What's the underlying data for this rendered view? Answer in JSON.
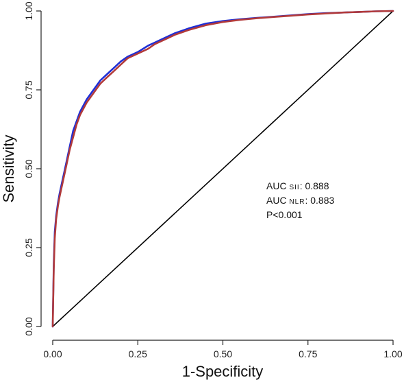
{
  "chart_data": {
    "type": "line",
    "title": "",
    "xlabel": "1-Specificity",
    "ylabel": "Sensitivity",
    "xlim": [
      0,
      1
    ],
    "ylim": [
      0,
      1
    ],
    "x_ticks": [
      "0.00",
      "0.25",
      "0.50",
      "0.75",
      "1.00"
    ],
    "y_ticks": [
      "0.00",
      "0.25",
      "0.50",
      "0.75",
      "1.00"
    ],
    "grid": false,
    "series": [
      {
        "name": "SII",
        "color": "#1f2fd6",
        "x": [
          0,
          0.003,
          0.006,
          0.01,
          0.015,
          0.02,
          0.03,
          0.04,
          0.05,
          0.06,
          0.07,
          0.08,
          0.09,
          0.1,
          0.12,
          0.14,
          0.16,
          0.18,
          0.2,
          0.22,
          0.25,
          0.28,
          0.3,
          0.33,
          0.36,
          0.4,
          0.45,
          0.5,
          0.55,
          0.6,
          0.65,
          0.7,
          0.75,
          0.8,
          0.85,
          0.9,
          0.95,
          1
        ],
        "y": [
          0,
          0.2,
          0.3,
          0.35,
          0.39,
          0.42,
          0.47,
          0.52,
          0.57,
          0.62,
          0.65,
          0.68,
          0.7,
          0.72,
          0.75,
          0.78,
          0.8,
          0.82,
          0.84,
          0.855,
          0.87,
          0.89,
          0.9,
          0.915,
          0.93,
          0.945,
          0.96,
          0.968,
          0.974,
          0.978,
          0.982,
          0.986,
          0.99,
          0.993,
          0.995,
          0.997,
          0.999,
          1
        ]
      },
      {
        "name": "NLR",
        "color": "#b23a3a",
        "x": [
          0,
          0.003,
          0.006,
          0.01,
          0.015,
          0.02,
          0.03,
          0.04,
          0.05,
          0.06,
          0.07,
          0.08,
          0.09,
          0.1,
          0.12,
          0.14,
          0.16,
          0.18,
          0.2,
          0.22,
          0.25,
          0.28,
          0.3,
          0.33,
          0.36,
          0.4,
          0.45,
          0.5,
          0.55,
          0.6,
          0.65,
          0.7,
          0.75,
          0.8,
          0.85,
          0.9,
          0.95,
          1
        ],
        "y": [
          0,
          0.18,
          0.28,
          0.34,
          0.38,
          0.41,
          0.46,
          0.51,
          0.56,
          0.6,
          0.64,
          0.67,
          0.69,
          0.71,
          0.74,
          0.77,
          0.79,
          0.81,
          0.83,
          0.85,
          0.865,
          0.88,
          0.895,
          0.91,
          0.925,
          0.94,
          0.955,
          0.965,
          0.972,
          0.977,
          0.981,
          0.985,
          0.989,
          0.992,
          0.995,
          0.997,
          0.999,
          1
        ]
      },
      {
        "name": "reference",
        "color": "#000000",
        "x": [
          0,
          1
        ],
        "y": [
          0,
          1
        ]
      }
    ],
    "annotations": {
      "sii_prefix": "AUC ",
      "sii_sub": "SII",
      "sii_value": ": 0.888",
      "nlr_prefix": "AUC ",
      "nlr_sub": "NLR",
      "nlr_value": ": 0.883",
      "pvalue": "P<0.001"
    }
  }
}
